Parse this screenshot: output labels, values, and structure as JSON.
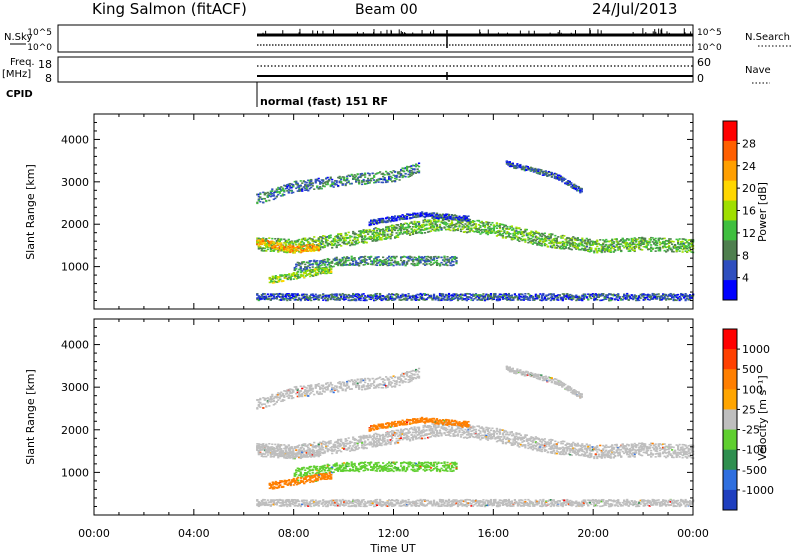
{
  "header": {
    "title": "King Salmon (fitACF)",
    "beam": "Beam 00",
    "date": "24/Jul/2013"
  },
  "top_panels": {
    "nsky_label": "N.Sky",
    "nsky_ticks": [
      "10^5",
      "10^0"
    ],
    "nsearch_label": "N.Search",
    "nsearch_ticks": [
      "10^5",
      "10^0"
    ],
    "freq_label": "Freq.",
    "freq_unit": "[MHz]",
    "freq_ticks": [
      "18",
      "8"
    ],
    "nave_label": "Nave",
    "nave_ticks": [
      "60",
      "0"
    ],
    "cpid_label": "CPID",
    "cpid_text": "normal (fast) 151 RF"
  },
  "power_panel": {
    "ylabel": "Slant Range [km]",
    "yticks": [
      "4000",
      "3000",
      "2000",
      "1000"
    ],
    "colorbar_label": "Power [dB]",
    "colorbar_ticks": [
      "28",
      "24",
      "20",
      "16",
      "12",
      "8",
      "4"
    ],
    "colors": [
      "#0000ff",
      "#2f4fbf",
      "#4f7f4f",
      "#3fbf3f",
      "#9fdf00",
      "#ffd700",
      "#ff9f00",
      "#ff5f00",
      "#ff0000"
    ]
  },
  "velocity_panel": {
    "ylabel": "Slant Range [km]",
    "yticks": [
      "4000",
      "3000",
      "2000",
      "1000"
    ],
    "colorbar_label": "Velocity [m s⁻¹]",
    "colorbar_ticks": [
      "1000",
      "500",
      "100",
      "25",
      "-25",
      "-100",
      "-500",
      "-1000"
    ],
    "colors": [
      "#1f3fbf",
      "#2f6fdf",
      "#2f8f4f",
      "#5fcf2f",
      "#bebebe",
      "#ffa500",
      "#ff7f00",
      "#ff4000",
      "#ff0000"
    ]
  },
  "xaxis": {
    "xlabel": "Time UT",
    "ticks": [
      "00:00",
      "04:00",
      "08:00",
      "12:00",
      "16:00",
      "20:00",
      "00:00"
    ]
  },
  "chart_data": {
    "type": "heatmap",
    "title": "King Salmon (fitACF)",
    "subtitle": "Beam 00",
    "date": "24/Jul/2013",
    "xlabel": "Time UT",
    "ylabel": "Slant Range [km]",
    "x_range_hours": [
      0,
      24
    ],
    "y_range_km": [
      0,
      4600
    ],
    "data_start_hour": 6.5,
    "power_colorbar": {
      "label": "Power [dB]",
      "min": 0,
      "max": 32,
      "ticks": [
        4,
        8,
        12,
        16,
        20,
        24,
        28
      ]
    },
    "velocity_colorbar": {
      "label": "Velocity [m s⁻¹]",
      "ticks": [
        -1000,
        -500,
        -100,
        -25,
        25,
        100,
        500,
        1000
      ]
    },
    "echo_bands": [
      {
        "points": [
          [
            6.5,
            1550
          ],
          [
            8,
            1500
          ],
          [
            10,
            1650
          ],
          [
            12,
            1850
          ],
          [
            14,
            2050
          ],
          [
            16,
            1900
          ],
          [
            18,
            1650
          ],
          [
            20,
            1500
          ],
          [
            22,
            1550
          ],
          [
            24,
            1500
          ]
        ],
        "power_db": 12,
        "velocity": 0,
        "width_km": 160
      },
      {
        "points": [
          [
            6.5,
            1600
          ],
          [
            8,
            1420
          ],
          [
            9,
            1480
          ]
        ],
        "power_db": 22,
        "velocity": 0,
        "width_km": 90
      },
      {
        "points": [
          [
            6.5,
            2600
          ],
          [
            8,
            2900
          ],
          [
            10,
            3050
          ],
          [
            12,
            3150
          ],
          [
            13,
            3350
          ]
        ],
        "power_db": 8,
        "velocity": 0,
        "width_km": 130
      },
      {
        "points": [
          [
            8,
            1000
          ],
          [
            10,
            1150
          ],
          [
            12,
            1150
          ],
          [
            14.5,
            1150
          ]
        ],
        "power_db": 9,
        "velocity": 100,
        "width_km": 110
      },
      {
        "points": [
          [
            7,
            700
          ],
          [
            8,
            800
          ],
          [
            9.5,
            950
          ]
        ],
        "power_db": 14,
        "velocity": -100,
        "width_km": 80
      },
      {
        "points": [
          [
            11,
            2050
          ],
          [
            13,
            2250
          ],
          [
            15,
            2150
          ]
        ],
        "power_db": 5,
        "velocity": -100,
        "width_km": 60
      },
      {
        "points": [
          [
            16.5,
            3450
          ],
          [
            18.5,
            3150
          ],
          [
            19.5,
            2800
          ]
        ],
        "power_db": 6,
        "velocity": 0,
        "width_km": 60
      },
      {
        "points": [
          [
            6.5,
            300
          ],
          [
            24,
            300
          ]
        ],
        "power_db": 6,
        "velocity": 0,
        "width_km": 80
      }
    ]
  }
}
